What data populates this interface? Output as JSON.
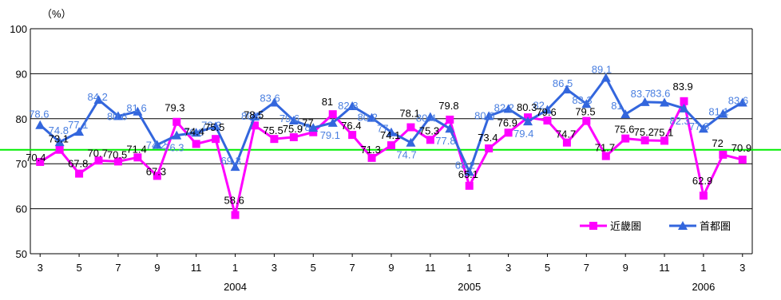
{
  "chart_data": {
    "type": "line",
    "ylabel": "（%）",
    "ylim": [
      50,
      100
    ],
    "yticks": [
      "50",
      "60",
      "70",
      "80",
      "90",
      "100"
    ],
    "x": [
      "3",
      "4",
      "5",
      "6",
      "7",
      "8",
      "9",
      "10",
      "11",
      "12",
      "1",
      "2",
      "3",
      "4",
      "5",
      "6",
      "7",
      "8",
      "9",
      "10",
      "11",
      "12",
      "1",
      "2",
      "3",
      "4",
      "5",
      "6",
      "7",
      "8",
      "9",
      "10",
      "11",
      "12",
      "1",
      "2",
      "3"
    ],
    "xtick_labels": [
      "3",
      "5",
      "7",
      "9",
      "11",
      "1",
      "3",
      "5",
      "7",
      "9",
      "11",
      "1",
      "3",
      "5",
      "7",
      "9",
      "11",
      "1",
      "3"
    ],
    "year_labels": [
      {
        "year": "2004",
        "index": 10
      },
      {
        "year": "2005",
        "index": 22
      },
      {
        "year": "2006",
        "index": 34
      }
    ],
    "reference_line": {
      "value": 73.1,
      "color": "#00ee00"
    },
    "series": [
      {
        "name": "近畿圏",
        "color": "#ff00ff",
        "marker": "square",
        "label_color": "#000000",
        "values": [
          70.4,
          73.1,
          67.8,
          70.7,
          70.5,
          71.4,
          67.3,
          79.3,
          74.4,
          75.5,
          58.6,
          78.5,
          75.5,
          75.9,
          77.0,
          81.0,
          76.4,
          71.3,
          74.1,
          78.1,
          75.3,
          79.8,
          65.1,
          73.4,
          76.9,
          80.3,
          79.6,
          74.7,
          79.5,
          71.7,
          75.6,
          75.2,
          75.1,
          83.9,
          62.9,
          72.0,
          70.9
        ],
        "labels": [
          "70.4",
          "73.1",
          "67.8",
          "70.7",
          "70.5",
          "71.4",
          "67.3",
          "79.3",
          "74.4",
          "75.5",
          "58.6",
          "78.5",
          "75.5",
          "75.9",
          "77",
          "81",
          "76.4",
          "71.3",
          "74.1",
          "78.1",
          "75.3",
          "79.8",
          "65.1",
          "73.4",
          "76.9",
          "80.3",
          "79.6",
          "74.7",
          "79.5",
          "71.7",
          "75.6",
          "75.2",
          "75.1",
          "83.9",
          "62.9",
          "72",
          "70.9"
        ]
      },
      {
        "name": "首都圏",
        "color": "#3366dd",
        "marker": "triangle",
        "label_color": "#4a7fe0",
        "values": [
          78.6,
          74.8,
          77.1,
          84.2,
          80.6,
          81.6,
          74.2,
          76.3,
          76.9,
          78.3,
          69.3,
          80.5,
          83.6,
          79.6,
          78.0,
          79.1,
          82.8,
          80.2,
          77.0,
          74.7,
          80.4,
          77.8,
          68.2,
          80.6,
          82.2,
          79.4,
          82.0,
          86.5,
          83.3,
          89.1,
          81.0,
          83.7,
          83.6,
          82.3,
          77.8,
          81.1,
          83.6
        ],
        "labels": [
          "78.6",
          "74.8",
          "77.1",
          "84.2",
          "80.6",
          "81.6",
          "74.2",
          "76.3",
          "76.9",
          "78.3",
          "69.3",
          "80.5",
          "83.6",
          "79.6",
          "78",
          "79.1",
          "82.8",
          "80.2",
          "77",
          "74.7",
          "80.4",
          "77.8",
          "68.2",
          "80.6",
          "82.2",
          "79.4",
          "82",
          "86.5",
          "83.3",
          "89.1",
          "81",
          "83.7",
          "83.6",
          "82.3",
          "77.8",
          "81.1",
          "83.6"
        ]
      }
    ],
    "legend": {
      "position": "bottom-right",
      "entries": [
        "近畿圏",
        "首都圏"
      ]
    }
  }
}
